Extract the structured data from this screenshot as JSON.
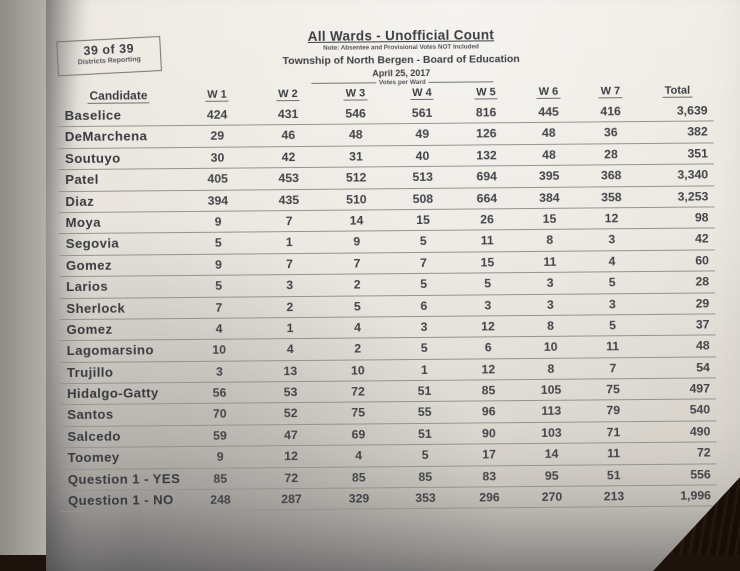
{
  "report": {
    "districts_box": {
      "line1": "39 of 39",
      "line2": "Districts Reporting"
    },
    "title": "All Wards - Unofficial Count",
    "note": "Note: Absentee and Provisional Votes NOT Included",
    "subtitle": "Township of North Bergen - Board of Education",
    "date": "April 25, 2017"
  },
  "colors": {
    "paper": "#e9e5de",
    "ink": "#3d3e43",
    "wood": "#35200f"
  },
  "table": {
    "candidate_header": "Candidate",
    "votes_per_ward_label": "Votes per Ward",
    "ward_headers": [
      "W 1",
      "W 2",
      "W 3",
      "W 4",
      "W 5",
      "W 6",
      "W 7"
    ],
    "total_header": "Total",
    "rows": [
      {
        "candidate": "Baselice",
        "votes": [
          "424",
          "431",
          "546",
          "561",
          "816",
          "445",
          "416"
        ],
        "total": "3,639"
      },
      {
        "candidate": "DeMarchena",
        "votes": [
          "29",
          "46",
          "48",
          "49",
          "126",
          "48",
          "36"
        ],
        "total": "382"
      },
      {
        "candidate": "Soutuyo",
        "votes": [
          "30",
          "42",
          "31",
          "40",
          "132",
          "48",
          "28"
        ],
        "total": "351"
      },
      {
        "candidate": "Patel",
        "votes": [
          "405",
          "453",
          "512",
          "513",
          "694",
          "395",
          "368"
        ],
        "total": "3,340"
      },
      {
        "candidate": "Diaz",
        "votes": [
          "394",
          "435",
          "510",
          "508",
          "664",
          "384",
          "358"
        ],
        "total": "3,253"
      },
      {
        "candidate": "Moya",
        "votes": [
          "9",
          "7",
          "14",
          "15",
          "26",
          "15",
          "12"
        ],
        "total": "98"
      },
      {
        "candidate": "Segovia",
        "votes": [
          "5",
          "1",
          "9",
          "5",
          "11",
          "8",
          "3"
        ],
        "total": "42"
      },
      {
        "candidate": "Gomez",
        "votes": [
          "9",
          "7",
          "7",
          "7",
          "15",
          "11",
          "4"
        ],
        "total": "60"
      },
      {
        "candidate": "Larios",
        "votes": [
          "5",
          "3",
          "2",
          "5",
          "5",
          "3",
          "5"
        ],
        "total": "28"
      },
      {
        "candidate": "Sherlock",
        "votes": [
          "7",
          "2",
          "5",
          "6",
          "3",
          "3",
          "3"
        ],
        "total": "29"
      },
      {
        "candidate": "Gomez",
        "votes": [
          "4",
          "1",
          "4",
          "3",
          "12",
          "8",
          "5"
        ],
        "total": "37"
      },
      {
        "candidate": "Lagomarsino",
        "votes": [
          "10",
          "4",
          "2",
          "5",
          "6",
          "10",
          "11"
        ],
        "total": "48"
      },
      {
        "candidate": "Trujillo",
        "votes": [
          "3",
          "13",
          "10",
          "1",
          "12",
          "8",
          "7"
        ],
        "total": "54"
      },
      {
        "candidate": "Hidalgo-Gatty",
        "votes": [
          "56",
          "53",
          "72",
          "51",
          "85",
          "105",
          "75"
        ],
        "total": "497"
      },
      {
        "candidate": "Santos",
        "votes": [
          "70",
          "52",
          "75",
          "55",
          "96",
          "113",
          "79"
        ],
        "total": "540"
      },
      {
        "candidate": "Salcedo",
        "votes": [
          "59",
          "47",
          "69",
          "51",
          "90",
          "103",
          "71"
        ],
        "total": "490"
      },
      {
        "candidate": "Toomey",
        "votes": [
          "9",
          "12",
          "4",
          "5",
          "17",
          "14",
          "11"
        ],
        "total": "72"
      },
      {
        "candidate": "Question 1 - YES",
        "votes": [
          "85",
          "72",
          "85",
          "85",
          "83",
          "95",
          "51"
        ],
        "total": "556"
      },
      {
        "candidate": "Question 1 - NO",
        "votes": [
          "248",
          "287",
          "329",
          "353",
          "296",
          "270",
          "213"
        ],
        "total": "1,996"
      }
    ]
  }
}
